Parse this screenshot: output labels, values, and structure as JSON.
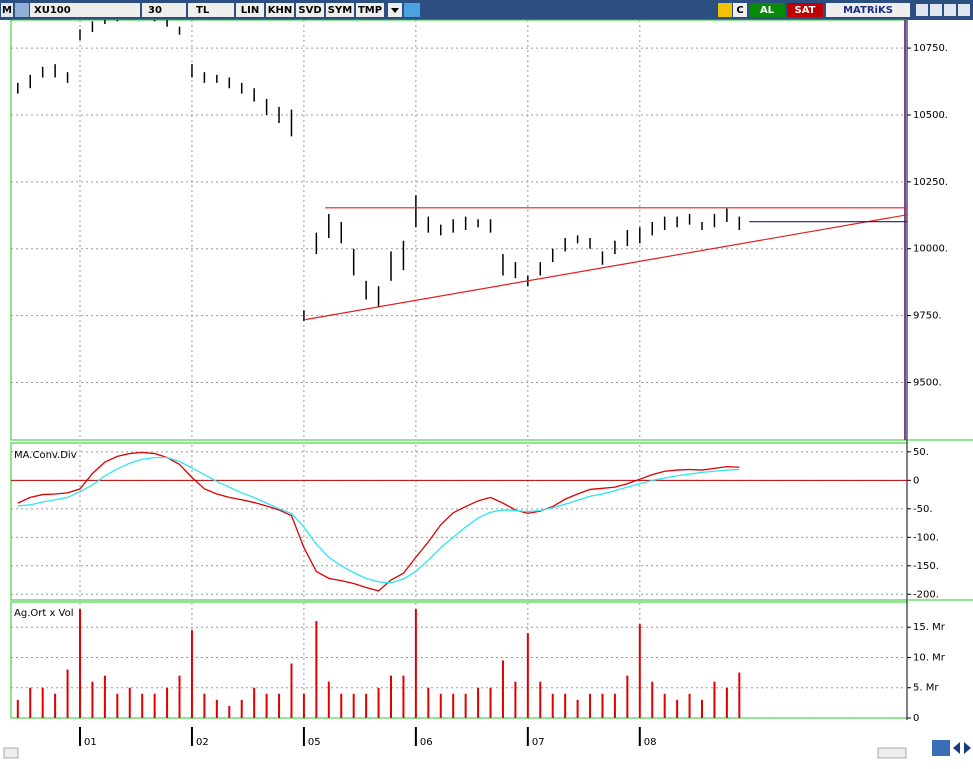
{
  "toolbar": {
    "logo": "M",
    "symbol": "XU100",
    "period": "30",
    "currency": "TL",
    "buttons": [
      "LIN",
      "KHN",
      "SVD",
      "SYM",
      "TMP"
    ],
    "c": "C",
    "buy": "AL",
    "sell": "SAT",
    "brand": "MATRiKS"
  },
  "chart_data": [
    {
      "type": "hilo",
      "color": "#000000",
      "grid": true,
      "ylim": [
        9285,
        10855
      ],
      "yticks": [
        {
          "value": 9500,
          "label": "9500."
        },
        {
          "value": 9750,
          "label": "9750."
        },
        {
          "value": 10000,
          "label": "10000."
        },
        {
          "value": 10250,
          "label": "10250."
        },
        {
          "value": 10500,
          "label": "10500."
        },
        {
          "value": 10750,
          "label": "10750."
        }
      ],
      "high": [
        10620,
        10650,
        10680,
        10690,
        10660,
        10820,
        10850,
        10880,
        10890,
        10900,
        10900,
        10890,
        10870,
        10830,
        10690,
        10660,
        10650,
        10640,
        10620,
        10600,
        10560,
        10530,
        10520,
        9770,
        10060,
        10130,
        10100,
        10000,
        9880,
        9860,
        9990,
        10030,
        10200,
        10120,
        10090,
        10110,
        10120,
        10110,
        10110,
        9980,
        9950,
        9900,
        9950,
        10000,
        10040,
        10050,
        10040,
        9990,
        10030,
        10070,
        10080,
        10100,
        10120,
        10120,
        10130,
        10100,
        10130,
        10150,
        10120
      ],
      "low": [
        10580,
        10600,
        10640,
        10640,
        10620,
        10780,
        10810,
        10840,
        10850,
        10860,
        10860,
        10850,
        10830,
        10800,
        10640,
        10620,
        10620,
        10600,
        10580,
        10550,
        10500,
        10470,
        10420,
        9730,
        9980,
        10040,
        10020,
        9900,
        9810,
        9780,
        9880,
        9920,
        10080,
        10060,
        10050,
        10060,
        10070,
        10080,
        10060,
        9900,
        9890,
        9860,
        9900,
        9950,
        9990,
        10020,
        10000,
        9940,
        9980,
        10010,
        10020,
        10050,
        10070,
        10080,
        10090,
        10070,
        10080,
        10100,
        10070
      ],
      "trendlines": [
        {
          "color": "#e02020",
          "x": [
            24.7,
            71.5
          ],
          "y": [
            10153,
            10153
          ]
        },
        {
          "color": "#e02020",
          "x": [
            23.1,
            71.5
          ],
          "y": [
            9735,
            10127
          ]
        },
        {
          "color": "#1a1a8c",
          "x": [
            58.8,
            71.5
          ],
          "y": [
            10101,
            10101
          ]
        }
      ]
    },
    {
      "type": "line",
      "title": "MA.Conv.Div",
      "grid": true,
      "ylim": [
        -210,
        62
      ],
      "yticks": [
        {
          "value": -200,
          "label": "-200."
        },
        {
          "value": -150,
          "label": "-150."
        },
        {
          "value": -100,
          "label": "-100."
        },
        {
          "value": -50,
          "label": "-50."
        },
        0,
        {
          "value": 50,
          "label": "50."
        }
      ],
      "reference_line": {
        "value": 0,
        "color": "#c00000"
      },
      "series": [
        {
          "color": "#e00000",
          "values": [
            -40,
            -30,
            -25,
            -24,
            -22,
            -15,
            12,
            32,
            42,
            47,
            49,
            47,
            40,
            28,
            5,
            -15,
            -24,
            -30,
            -34,
            -39,
            -45,
            -52,
            -62,
            -118,
            -160,
            -172,
            -176,
            -181,
            -188,
            -194,
            -175,
            -163,
            -135,
            -108,
            -78,
            -57,
            -46,
            -36,
            -30,
            -40,
            -52,
            -58,
            -54,
            -46,
            -33,
            -24,
            -16,
            -14,
            -12,
            -6,
            2,
            10,
            16,
            18,
            19,
            18,
            21,
            24,
            23
          ]
        },
        {
          "color": "#2ee6f0",
          "values": [
            -45,
            -43,
            -38,
            -34,
            -30,
            -20,
            -8,
            8,
            20,
            30,
            37,
            40,
            40,
            33,
            22,
            10,
            -2,
            -12,
            -22,
            -30,
            -40,
            -50,
            -58,
            -82,
            -112,
            -135,
            -150,
            -162,
            -172,
            -178,
            -180,
            -173,
            -160,
            -140,
            -118,
            -100,
            -82,
            -66,
            -56,
            -52,
            -53,
            -55,
            -53,
            -48,
            -42,
            -35,
            -28,
            -24,
            -18,
            -12,
            -6,
            0,
            4,
            8,
            11,
            14,
            16,
            18,
            19
          ]
        }
      ]
    },
    {
      "type": "bar",
      "title": "Ag.Ort x Vol",
      "color": "#e00000",
      "grid": true,
      "ylim": [
        0,
        19
      ],
      "yticks": [
        0,
        {
          "value": 5,
          "label": "5. Mr"
        },
        {
          "value": 10,
          "label": "10. Mr"
        },
        {
          "value": 15,
          "label": "15. Mr"
        }
      ],
      "categories": [
        null,
        null,
        null,
        null,
        null,
        "01",
        null,
        null,
        null,
        null,
        null,
        null,
        null,
        null,
        "02",
        null,
        null,
        null,
        null,
        null,
        null,
        null,
        null,
        "05",
        null,
        null,
        null,
        null,
        null,
        null,
        null,
        null,
        "06",
        null,
        null,
        null,
        null,
        null,
        null,
        null,
        null,
        "07",
        null,
        null,
        null,
        null,
        null,
        null,
        null,
        null,
        "08",
        null,
        null,
        null,
        null,
        null,
        null,
        null,
        null
      ],
      "values": [
        3,
        5,
        5,
        4,
        8,
        18,
        6,
        7,
        4,
        5,
        4,
        4,
        5,
        7,
        14.5,
        4,
        3,
        2,
        3,
        5,
        4,
        4,
        9,
        4,
        16,
        6,
        4,
        4,
        4,
        5,
        7,
        7,
        18,
        5,
        4,
        4,
        4,
        5,
        5,
        9.5,
        6,
        14,
        6,
        4,
        4,
        3,
        4,
        4,
        4,
        7,
        15.5,
        6,
        4,
        3,
        4,
        3,
        6,
        5,
        7.5
      ]
    }
  ]
}
